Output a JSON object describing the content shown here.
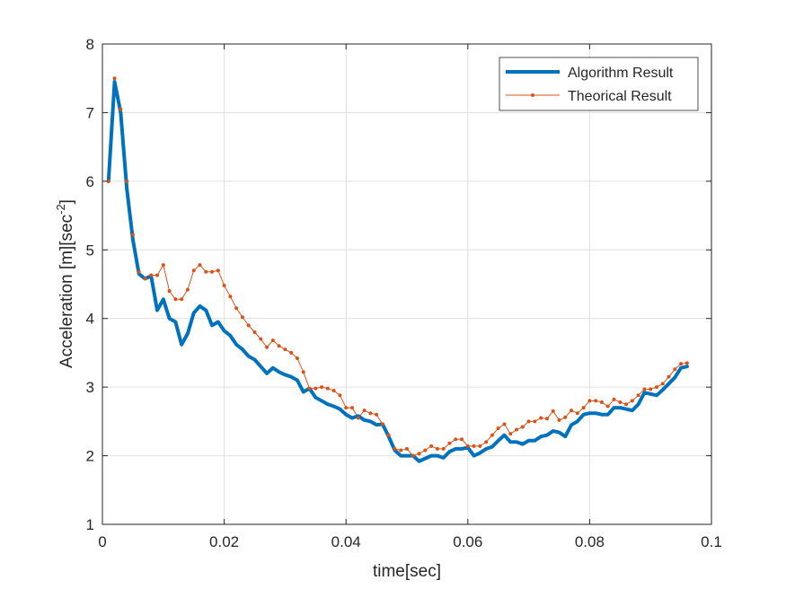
{
  "chart_data": {
    "type": "line",
    "xlabel": "time[sec]",
    "ylabel": "Acceleration [m][sec",
    "ylabel_sup": "-2",
    "ylabel_close": "]",
    "xlim": [
      0,
      0.1
    ],
    "ylim": [
      1,
      8
    ],
    "xticks": [
      0,
      0.02,
      0.04,
      0.06,
      0.08,
      0.1
    ],
    "xtick_labels": [
      "0",
      "0.02",
      "0.04",
      "0.06",
      "0.08",
      "0.1"
    ],
    "yticks": [
      1,
      2,
      3,
      4,
      5,
      6,
      7,
      8
    ],
    "ytick_labels": [
      "1",
      "2",
      "3",
      "4",
      "5",
      "6",
      "7",
      "8"
    ],
    "grid": true,
    "legend_position": "top-right",
    "series": [
      {
        "name": "Algorithm Result",
        "color": "#0072BD",
        "style": "thick-line",
        "x": [
          0.001,
          0.002,
          0.003,
          0.004,
          0.005,
          0.006,
          0.007,
          0.008,
          0.009,
          0.01,
          0.011,
          0.012,
          0.013,
          0.014,
          0.015,
          0.016,
          0.017,
          0.018,
          0.019,
          0.02,
          0.021,
          0.022,
          0.023,
          0.024,
          0.025,
          0.026,
          0.027,
          0.028,
          0.029,
          0.03,
          0.031,
          0.032,
          0.033,
          0.034,
          0.035,
          0.036,
          0.037,
          0.038,
          0.039,
          0.04,
          0.041,
          0.042,
          0.043,
          0.044,
          0.045,
          0.046,
          0.047,
          0.048,
          0.049,
          0.05,
          0.051,
          0.052,
          0.053,
          0.054,
          0.055,
          0.056,
          0.057,
          0.058,
          0.059,
          0.06,
          0.061,
          0.062,
          0.063,
          0.064,
          0.065,
          0.066,
          0.067,
          0.068,
          0.069,
          0.07,
          0.071,
          0.072,
          0.073,
          0.074,
          0.075,
          0.076,
          0.077,
          0.078,
          0.079,
          0.08,
          0.081,
          0.082,
          0.083,
          0.084,
          0.085,
          0.086,
          0.087,
          0.088,
          0.089,
          0.09,
          0.091,
          0.092,
          0.093,
          0.094,
          0.095,
          0.096
        ],
        "y": [
          6.0,
          7.45,
          7.0,
          5.9,
          5.15,
          4.65,
          4.58,
          4.62,
          4.12,
          4.28,
          4.0,
          3.95,
          3.62,
          3.78,
          4.08,
          4.18,
          4.12,
          3.9,
          3.95,
          3.82,
          3.75,
          3.62,
          3.55,
          3.45,
          3.4,
          3.3,
          3.2,
          3.28,
          3.22,
          3.18,
          3.15,
          3.1,
          2.93,
          2.98,
          2.85,
          2.8,
          2.75,
          2.72,
          2.68,
          2.6,
          2.55,
          2.58,
          2.52,
          2.5,
          2.45,
          2.46,
          2.28,
          2.08,
          2.0,
          2.0,
          2.0,
          1.92,
          1.96,
          2.0,
          2.0,
          1.97,
          2.06,
          2.1,
          2.1,
          2.12,
          2.0,
          2.04,
          2.1,
          2.13,
          2.22,
          2.3,
          2.2,
          2.2,
          2.17,
          2.22,
          2.22,
          2.28,
          2.3,
          2.36,
          2.34,
          2.28,
          2.45,
          2.5,
          2.6,
          2.62,
          2.62,
          2.6,
          2.6,
          2.7,
          2.7,
          2.68,
          2.66,
          2.75,
          2.92,
          2.9,
          2.88,
          2.96,
          3.05,
          3.14,
          3.28,
          3.3
        ]
      },
      {
        "name": "Theorical Result",
        "color": "#D95319",
        "style": "thin-line-dots",
        "x": [
          0.001,
          0.002,
          0.003,
          0.004,
          0.005,
          0.006,
          0.007,
          0.008,
          0.009,
          0.01,
          0.011,
          0.012,
          0.013,
          0.014,
          0.015,
          0.016,
          0.017,
          0.018,
          0.019,
          0.02,
          0.021,
          0.022,
          0.023,
          0.024,
          0.025,
          0.026,
          0.027,
          0.028,
          0.029,
          0.03,
          0.031,
          0.032,
          0.033,
          0.034,
          0.035,
          0.036,
          0.037,
          0.038,
          0.039,
          0.04,
          0.041,
          0.042,
          0.043,
          0.044,
          0.045,
          0.046,
          0.047,
          0.048,
          0.049,
          0.05,
          0.051,
          0.052,
          0.053,
          0.054,
          0.055,
          0.056,
          0.057,
          0.058,
          0.059,
          0.06,
          0.061,
          0.062,
          0.063,
          0.064,
          0.065,
          0.066,
          0.067,
          0.068,
          0.069,
          0.07,
          0.071,
          0.072,
          0.073,
          0.074,
          0.075,
          0.076,
          0.077,
          0.078,
          0.079,
          0.08,
          0.081,
          0.082,
          0.083,
          0.084,
          0.085,
          0.086,
          0.087,
          0.088,
          0.089,
          0.09,
          0.091,
          0.092,
          0.093,
          0.094,
          0.095,
          0.096
        ],
        "y": [
          6.0,
          7.5,
          7.05,
          6.0,
          5.22,
          4.68,
          4.58,
          4.63,
          4.63,
          4.78,
          4.4,
          4.28,
          4.28,
          4.42,
          4.7,
          4.78,
          4.68,
          4.68,
          4.7,
          4.48,
          4.32,
          4.15,
          4.02,
          3.9,
          3.8,
          3.7,
          3.58,
          3.68,
          3.6,
          3.55,
          3.5,
          3.42,
          3.22,
          2.98,
          2.98,
          3.0,
          2.98,
          2.95,
          2.88,
          2.7,
          2.7,
          2.55,
          2.66,
          2.62,
          2.6,
          2.46,
          2.3,
          2.1,
          2.08,
          2.1,
          2.0,
          2.03,
          2.08,
          2.14,
          2.1,
          2.1,
          2.18,
          2.24,
          2.24,
          2.14,
          2.14,
          2.14,
          2.2,
          2.3,
          2.4,
          2.46,
          2.32,
          2.38,
          2.42,
          2.5,
          2.5,
          2.55,
          2.54,
          2.65,
          2.52,
          2.56,
          2.66,
          2.62,
          2.7,
          2.8,
          2.8,
          2.78,
          2.72,
          2.82,
          2.78,
          2.75,
          2.8,
          2.88,
          2.97,
          2.97,
          3.0,
          3.05,
          3.15,
          3.26,
          3.34,
          3.35
        ]
      }
    ]
  }
}
